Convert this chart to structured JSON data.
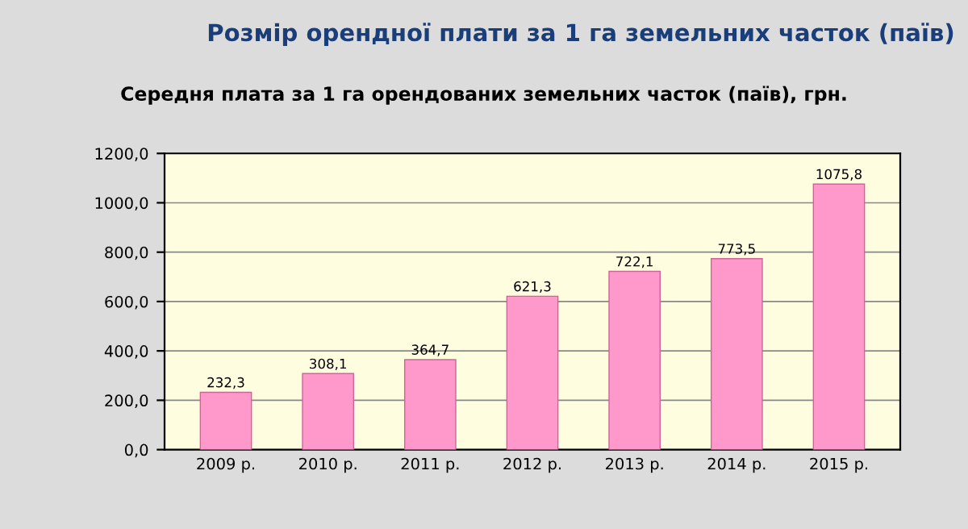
{
  "chart_data": {
    "type": "bar",
    "title": "Розмір орендної плати за 1 га земельних часток (паїв)",
    "subtitle": "Середня плата за 1 га орендованих земельних часток (паїв), грн.",
    "categories": [
      "2009 р.",
      "2010 р.",
      "2011 р.",
      "2012 р.",
      "2013 р.",
      "2014 р.",
      "2015 р."
    ],
    "values": [
      232.3,
      308.1,
      364.7,
      621.3,
      722.1,
      773.5,
      1075.8
    ],
    "value_labels": [
      "232,3",
      "308,1",
      "364,7",
      "621,3",
      "722,1",
      "773,5",
      "1075,8"
    ],
    "color": "#ff99cc",
    "ylim": [
      0,
      1200
    ],
    "yticks": [
      {
        "value": 0,
        "label": "0,0"
      },
      {
        "value": 200,
        "label": "200,0"
      },
      {
        "value": 400,
        "label": "400,0"
      },
      {
        "value": 600,
        "label": "600,0"
      },
      {
        "value": 800,
        "label": "800,0"
      },
      {
        "value": 1000,
        "label": "1000,0"
      },
      {
        "value": 1200,
        "label": "1200,0"
      }
    ],
    "grid": "y"
  }
}
